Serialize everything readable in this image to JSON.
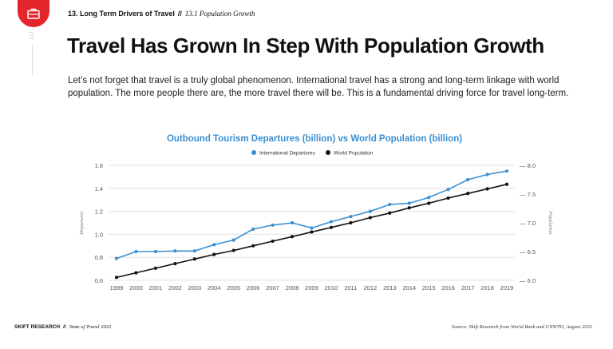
{
  "header": {
    "chapter": "13. Long Term Drivers of Travel",
    "separator": "//",
    "section": "13.1 Population Growth",
    "page_marker": "177"
  },
  "title": "Travel Has Grown In Step With Population Growth",
  "intro": "Let’s not forget that travel is a truly global phenomenon. International travel has a strong and long-term linkage with world population. The more people there are, the more travel there will be. This is a fundamental driving force for travel long-term.",
  "chart_data": {
    "type": "line",
    "title": "Outbound Tourism Departures (billion) vs World Population (billion)",
    "x": [
      "1999",
      "2000",
      "2001",
      "2002",
      "2003",
      "2004",
      "2005",
      "2006",
      "2007",
      "2008",
      "2009",
      "2010",
      "2011",
      "2012",
      "2013",
      "2014",
      "2015",
      "2016",
      "2017",
      "2018",
      "2019"
    ],
    "series": [
      {
        "name": "International Departures",
        "axis": "left",
        "color": "#3a8fd1",
        "values": [
          0.79,
          0.85,
          0.85,
          0.855,
          0.855,
          0.91,
          0.95,
          1.045,
          1.08,
          1.1,
          1.055,
          1.11,
          1.155,
          1.2,
          1.26,
          1.27,
          1.32,
          1.39,
          1.475,
          1.52,
          1.55
        ]
      },
      {
        "name": "World Population",
        "axis": "right",
        "color": "#111111",
        "values": [
          6.05,
          6.13,
          6.21,
          6.29,
          6.37,
          6.45,
          6.52,
          6.6,
          6.68,
          6.76,
          6.84,
          6.92,
          7.0,
          7.09,
          7.17,
          7.26,
          7.34,
          7.43,
          7.51,
          7.59,
          7.67
        ]
      }
    ],
    "ylabel_left": "Departures",
    "ylabel_right": "Population",
    "ylim_left": [
      0.6,
      1.6
    ],
    "yticks_left": [
      "0.6",
      "0.8",
      "1.0",
      "1.2",
      "1.4",
      "1.6"
    ],
    "ylim_right": [
      6.0,
      8.0
    ],
    "yticks_right": [
      "6.0",
      "6.5",
      "7.0",
      "7.5",
      "8.0"
    ],
    "legend_position": "top-center",
    "grid": true
  },
  "footer": {
    "brand": "SKIFT RESEARCH",
    "separator": "//",
    "publication": "State of Travel 2022",
    "source": "Source: Skift Research from World Bank and UNWTO, August 2022"
  },
  "colors": {
    "accent": "#e3262b",
    "departures": "#3a8fd1",
    "population": "#111111",
    "title_blue": "#3a8fd1"
  },
  "icons": {
    "badge": "briefcase-icon"
  }
}
